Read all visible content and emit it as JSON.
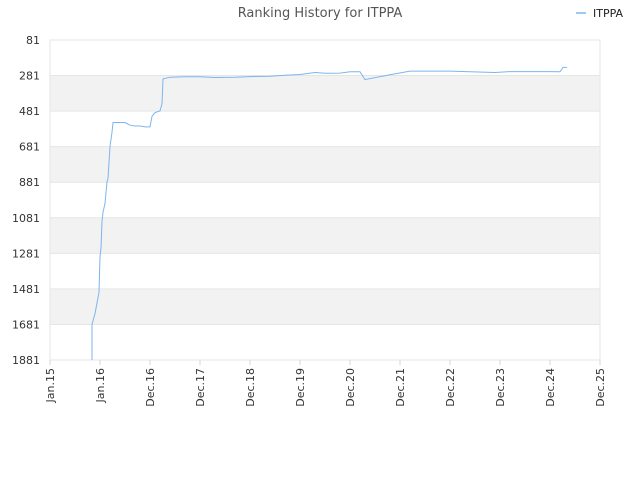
{
  "chart_data": {
    "type": "line",
    "title": "Ranking History for ITPPA",
    "xlabel": "",
    "ylabel": "",
    "y_inverted": true,
    "ylim": [
      81,
      1881
    ],
    "y_ticks": [
      81,
      281,
      481,
      681,
      881,
      1081,
      1281,
      1481,
      1681,
      1881
    ],
    "x_ticks": [
      "Jan.15",
      "Jan.16",
      "Dec.16",
      "Dec.17",
      "Dec.18",
      "Dec.19",
      "Dec.20",
      "Dec.21",
      "Dec.22",
      "Dec.23",
      "Dec.24",
      "Dec.25"
    ],
    "grid": true,
    "legend_position": "top-right",
    "series_color": "#7cb5ec",
    "band_colors": [
      "#f2f2f2",
      "#ffffff"
    ],
    "series": [
      {
        "name": "ITPPA",
        "points": [
          [
            0.84,
            1881
          ],
          [
            0.84,
            1680
          ],
          [
            0.9,
            1620
          ],
          [
            0.98,
            1500
          ],
          [
            1.0,
            1300
          ],
          [
            1.02,
            1250
          ],
          [
            1.04,
            1100
          ],
          [
            1.06,
            1050
          ],
          [
            1.1,
            1000
          ],
          [
            1.14,
            880
          ],
          [
            1.16,
            860
          ],
          [
            1.2,
            680
          ],
          [
            1.24,
            600
          ],
          [
            1.26,
            545
          ],
          [
            1.4,
            545
          ],
          [
            1.5,
            545
          ],
          [
            1.6,
            560
          ],
          [
            1.7,
            565
          ],
          [
            1.8,
            565
          ],
          [
            1.9,
            570
          ],
          [
            2.0,
            570
          ],
          [
            2.04,
            510
          ],
          [
            2.1,
            490
          ],
          [
            2.2,
            480
          ],
          [
            2.24,
            440
          ],
          [
            2.26,
            300
          ],
          [
            2.4,
            290
          ],
          [
            2.7,
            288
          ],
          [
            3.0,
            288
          ],
          [
            3.3,
            292
          ],
          [
            3.7,
            290
          ],
          [
            4.0,
            287
          ],
          [
            4.4,
            285
          ],
          [
            4.7,
            279
          ],
          [
            5.0,
            275
          ],
          [
            5.3,
            264
          ],
          [
            5.5,
            268
          ],
          [
            5.8,
            267
          ],
          [
            6.0,
            260
          ],
          [
            6.2,
            260
          ],
          [
            6.3,
            304
          ],
          [
            6.8,
            276
          ],
          [
            7.2,
            256
          ],
          [
            7.6,
            256
          ],
          [
            8.0,
            256
          ],
          [
            8.4,
            260
          ],
          [
            8.9,
            264
          ],
          [
            9.2,
            259
          ],
          [
            9.6,
            259
          ],
          [
            10.0,
            259
          ],
          [
            10.2,
            260
          ],
          [
            10.26,
            235
          ],
          [
            10.34,
            235
          ]
        ]
      }
    ]
  }
}
